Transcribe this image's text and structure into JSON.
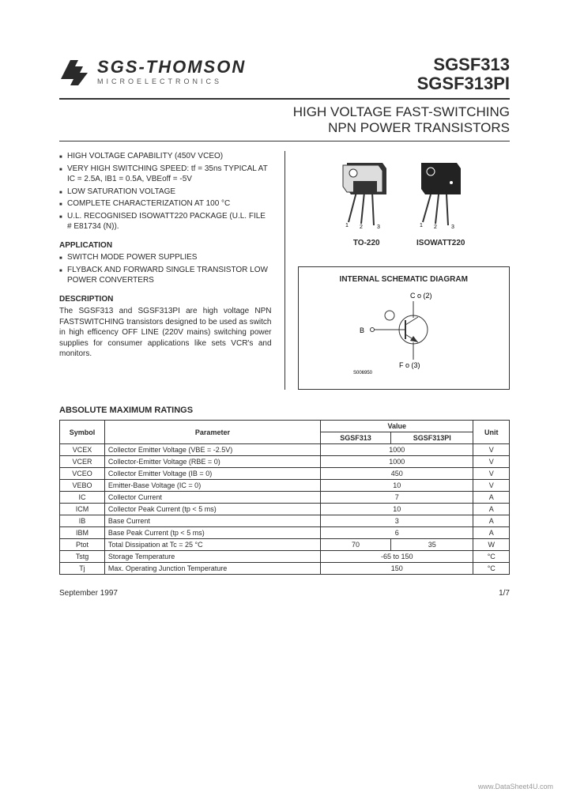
{
  "header": {
    "company_name": "SGS-THOMSON",
    "company_sub": "MICROELECTRONICS",
    "part1": "SGSF313",
    "part2": "SGSF313PI",
    "title_line1": "HIGH VOLTAGE FAST-SWITCHING",
    "title_line2": "NPN POWER TRANSISTORS"
  },
  "features": [
    "HIGH VOLTAGE CAPABILITY (450V VCEO)",
    "VERY HIGH SWITCHING SPEED: tf = 35ns TYPICAL AT IC = 2.5A, IB1 = 0.5A, VBEoff = -5V",
    "LOW SATURATION VOLTAGE",
    "COMPLETE CHARACTERIZATION AT 100 °C",
    "U.L. RECOGNISED ISOWATT220 PACKAGE (U.L. FILE # E81734 (N))."
  ],
  "application": {
    "head": "APPLICATION",
    "items": [
      "SWITCH MODE POWER SUPPLIES",
      "FLYBACK AND FORWARD SINGLE TRANSISTOR LOW POWER CONVERTERS"
    ]
  },
  "description": {
    "head": "DESCRIPTION",
    "text": "The SGSF313 and SGSF313PI are high voltage NPN FASTSWITCHING transistors designed to be used as switch in high efficency OFF LINE (220V mains) switching power supplies for consumer applications like sets VCR's and monitors."
  },
  "packages": {
    "pkg1_label": "TO-220",
    "pkg2_label": "ISOWATT220",
    "pin1": "1",
    "pin2": "2",
    "pin3": "3"
  },
  "schematic": {
    "title": "INTERNAL SCHEMATIC DIAGRAM",
    "c_label": "C o (2)",
    "b_label": "B",
    "e_label": "F   o (3)",
    "code": "S006950"
  },
  "ratings": {
    "title": "ABSOLUTE MAXIMUM RATINGS",
    "headers": {
      "symbol": "Symbol",
      "parameter": "Parameter",
      "value": "Value",
      "unit": "Unit"
    },
    "value_sub1": "SGSF313",
    "value_sub2": "SGSF313PI",
    "rows": [
      {
        "sym": "VCEX",
        "param": "Collector Emitter Voltage (VBE = -2.5V)",
        "v1": "1000",
        "v2": "",
        "unit": "V",
        "span": true
      },
      {
        "sym": "VCER",
        "param": "Collector-Emitter Voltage (RBE = 0)",
        "v1": "1000",
        "v2": "",
        "unit": "V",
        "span": true
      },
      {
        "sym": "VCEO",
        "param": "Collector Emitter Voltage (IB = 0)",
        "v1": "450",
        "v2": "",
        "unit": "V",
        "span": true
      },
      {
        "sym": "VEBO",
        "param": "Emitter-Base Voltage (IC = 0)",
        "v1": "10",
        "v2": "",
        "unit": "V",
        "span": true
      },
      {
        "sym": "IC",
        "param": "Collector Current",
        "v1": "7",
        "v2": "",
        "unit": "A",
        "span": true
      },
      {
        "sym": "ICM",
        "param": "Collector Peak Current (tp < 5 ms)",
        "v1": "10",
        "v2": "",
        "unit": "A",
        "span": true
      },
      {
        "sym": "IB",
        "param": "Base Current",
        "v1": "3",
        "v2": "",
        "unit": "A",
        "span": true
      },
      {
        "sym": "IBM",
        "param": "Base Peak Current (tp < 5 ms)",
        "v1": "6",
        "v2": "",
        "unit": "A",
        "span": true
      },
      {
        "sym": "Ptot",
        "param": "Total Dissipation at Tc = 25 °C",
        "v1": "70",
        "v2": "35",
        "unit": "W",
        "span": false
      },
      {
        "sym": "Tstg",
        "param": "Storage Temperature",
        "v1": "-65 to 150",
        "v2": "",
        "unit": "°C",
        "span": true
      },
      {
        "sym": "Tj",
        "param": "Max. Operating Junction Temperature",
        "v1": "150",
        "v2": "",
        "unit": "°C",
        "span": true
      }
    ]
  },
  "footer": {
    "date": "September 1997",
    "page": "1/7"
  },
  "watermark": "www.DataSheet4U.com"
}
